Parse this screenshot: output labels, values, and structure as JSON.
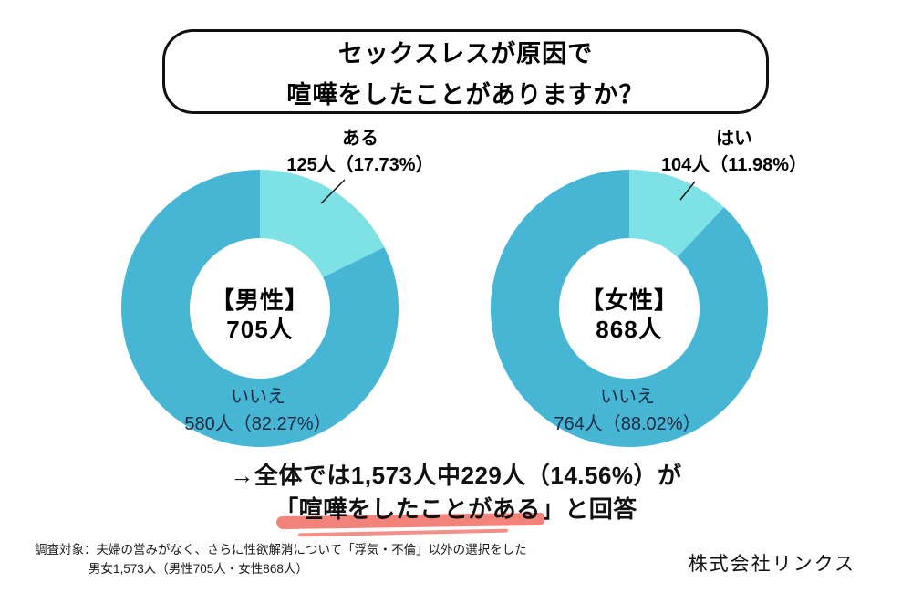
{
  "title": {
    "line1": "セックスレスが原因で",
    "line2": "喧嘩をしたことがありますか？"
  },
  "chart_data": [
    {
      "type": "donut",
      "group": "男性",
      "center_label": "【男性】",
      "center_value": "705人",
      "total_count": 705,
      "start_angle_deg": 0,
      "direction": "clockwise",
      "slices": [
        {
          "label": "ある",
          "count": 125,
          "pct": 17.73,
          "annotation": "125人（17.73%）",
          "color": "#7ee1e5"
        },
        {
          "label": "いいえ",
          "count": 580,
          "pct": 82.27,
          "annotation": "580人（82.27%）",
          "color": "#47b5d4"
        }
      ]
    },
    {
      "type": "donut",
      "group": "女性",
      "center_label": "【女性】",
      "center_value": "868人",
      "total_count": 868,
      "start_angle_deg": 0,
      "direction": "clockwise",
      "slices": [
        {
          "label": "はい",
          "count": 104,
          "pct": 11.98,
          "annotation": "104人（11.98%）",
          "color": "#7ee1e5"
        },
        {
          "label": "いいえ",
          "count": 764,
          "pct": 88.02,
          "annotation": "764人（88.02%）",
          "color": "#47b5d4"
        }
      ]
    }
  ],
  "summary": {
    "line1": "→全体では1,573人中229人（14.56%）が",
    "line2_highlight": "「喧嘩をしたことがある",
    "line2_suffix": "」と回答",
    "highlight_color": "#f2837b"
  },
  "footnote": {
    "line1": "調査対象：夫婦の営みがなく、さらに性欲解消について「浮気・不倫」以外の選択をした",
    "line2": "男女1,573人（男性705人・女性868人）"
  },
  "company": "株式会社リンクス",
  "colors": {
    "main_blue": "#47b5d4",
    "accent_cyan": "#7ee1e5",
    "highlight_red": "#f2837b",
    "inner_label_text": "#1b2c40"
  }
}
